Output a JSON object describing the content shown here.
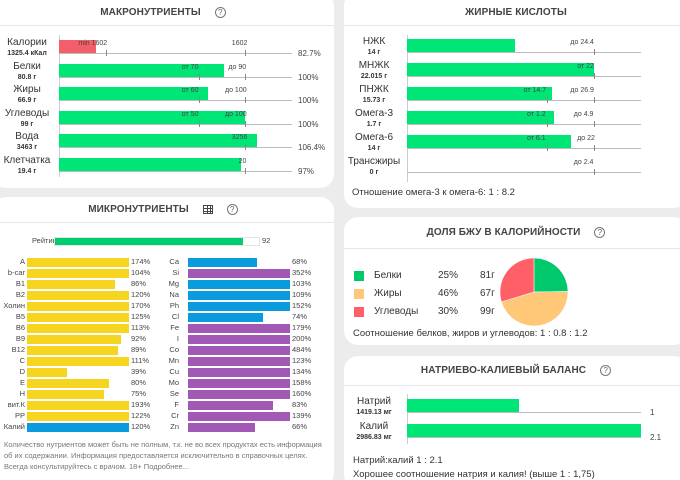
{
  "macro": {
    "title": "МАКРОНУТРИЕНТЫ",
    "help": "?",
    "rows": [
      {
        "name": "Калории",
        "value": "1325.4 кКал",
        "fill_pct": 16,
        "color": "#f25f6a",
        "marks": [
          {
            "text": "min 1602",
            "tick": 20
          },
          {
            "text": "1602",
            "tick": 80
          }
        ],
        "pct": "82.7%"
      },
      {
        "name": "Белки",
        "value": "80.8 г",
        "fill_pct": 71,
        "color": "#00e676",
        "marks": [
          {
            "text": "от 70",
            "tick": 60
          },
          {
            "text": "до 90",
            "tick": 80
          }
        ],
        "pct": "100%"
      },
      {
        "name": "Жиры",
        "value": "66.9 г",
        "fill_pct": 64,
        "color": "#00e676",
        "marks": [
          {
            "text": "от 60",
            "tick": 60
          },
          {
            "text": "до 100",
            "tick": 80
          }
        ],
        "pct": "100%"
      },
      {
        "name": "Углеводы",
        "value": "99 г",
        "fill_pct": 80,
        "color": "#00e676",
        "marks": [
          {
            "text": "от 50",
            "tick": 60
          },
          {
            "text": "до 100",
            "tick": 80
          }
        ],
        "pct": "100%"
      },
      {
        "name": "Вода",
        "value": "3463 г",
        "fill_pct": 85,
        "color": "#00e676",
        "marks": [
          {
            "text": "3256",
            "tick": 80
          }
        ],
        "pct": "106.4%"
      },
      {
        "name": "Клетчатка",
        "value": "19.4 г",
        "fill_pct": 78,
        "color": "#00e676",
        "marks": [
          {
            "text": "20",
            "tick": 80
          }
        ],
        "pct": "97%"
      }
    ]
  },
  "fatty": {
    "title": "ЖИРНЫЕ КИСЛОТЫ",
    "rows": [
      {
        "name": "НЖК",
        "value": "14 г",
        "fill_pct": 46,
        "marks": [
          {
            "text": "до 24.4",
            "tick": 80
          }
        ]
      },
      {
        "name": "МНЖК",
        "value": "22.015 г",
        "fill_pct": 80,
        "marks": [
          {
            "text": "от 22",
            "tick": 80
          }
        ]
      },
      {
        "name": "ПНЖК",
        "value": "15.73 г",
        "fill_pct": 62,
        "marks": [
          {
            "text": "от 14.7",
            "tick": 60
          },
          {
            "text": "до 26.9",
            "tick": 80
          }
        ]
      },
      {
        "name": "Омега-3",
        "value": "1.7 г",
        "fill_pct": 63,
        "marks": [
          {
            "text": "от 1.2",
            "tick": 60
          },
          {
            "text": "до 4.9",
            "tick": 80
          }
        ]
      },
      {
        "name": "Омега-6",
        "value": "14 г",
        "fill_pct": 70,
        "marks": [
          {
            "text": "от 6.1",
            "tick": 60
          },
          {
            "text": "до 22",
            "tick": 80
          }
        ]
      },
      {
        "name": "Трансжиры",
        "value": "0 г",
        "fill_pct": 0,
        "marks": [
          {
            "text": "до 2.4",
            "tick": 80
          }
        ]
      }
    ],
    "ratio": "Отношение омега-3 к омега-6: 1 : 8.2"
  },
  "micro": {
    "title": "МИКРОНУТРИЕНТЫ",
    "rating_label": "Рейтинг",
    "rating_value": "92",
    "rating_pct": 92,
    "colors": {
      "vitamin": "#f5d520",
      "macro": "#0a9ade",
      "micro": "#a259b5",
      "rating": "#00cc70"
    },
    "left": [
      {
        "name": "A",
        "pct": 174,
        "label": "174%",
        "kind": "vitamin"
      },
      {
        "name": "b-car",
        "pct": 104,
        "label": "104%",
        "kind": "vitamin"
      },
      {
        "name": "B1",
        "pct": 86,
        "label": "86%",
        "kind": "vitamin"
      },
      {
        "name": "B2",
        "pct": 120,
        "label": "120%",
        "kind": "vitamin"
      },
      {
        "name": "Холин",
        "pct": 170,
        "label": "170%",
        "kind": "vitamin"
      },
      {
        "name": "B5",
        "pct": 125,
        "label": "125%",
        "kind": "vitamin"
      },
      {
        "name": "B6",
        "pct": 113,
        "label": "113%",
        "kind": "vitamin"
      },
      {
        "name": "B9",
        "pct": 92,
        "label": "92%",
        "kind": "vitamin"
      },
      {
        "name": "B12",
        "pct": 89,
        "label": "89%",
        "kind": "vitamin"
      },
      {
        "name": "C",
        "pct": 111,
        "label": "111%",
        "kind": "vitamin"
      },
      {
        "name": "D",
        "pct": 39,
        "label": "39%",
        "kind": "vitamin"
      },
      {
        "name": "E",
        "pct": 80,
        "label": "80%",
        "kind": "vitamin"
      },
      {
        "name": "H",
        "pct": 75,
        "label": "75%",
        "kind": "vitamin"
      },
      {
        "name": "вит.К",
        "pct": 193,
        "label": "193%",
        "kind": "vitamin"
      },
      {
        "name": "PP",
        "pct": 122,
        "label": "122%",
        "kind": "vitamin"
      },
      {
        "name": "Калий",
        "pct": 120,
        "label": "120%",
        "kind": "macro"
      }
    ],
    "right": [
      {
        "name": "Ca",
        "pct": 68,
        "label": "68%",
        "kind": "macro"
      },
      {
        "name": "Si",
        "pct": 352,
        "label": "352%",
        "kind": "micro"
      },
      {
        "name": "Mg",
        "pct": 103,
        "label": "103%",
        "kind": "macro"
      },
      {
        "name": "Na",
        "pct": 109,
        "label": "109%",
        "kind": "macro"
      },
      {
        "name": "Ph",
        "pct": 152,
        "label": "152%",
        "kind": "macro"
      },
      {
        "name": "Cl",
        "pct": 74,
        "label": "74%",
        "kind": "macro"
      },
      {
        "name": "Fe",
        "pct": 179,
        "label": "179%",
        "kind": "micro"
      },
      {
        "name": "I",
        "pct": 200,
        "label": "200%",
        "kind": "micro"
      },
      {
        "name": "Co",
        "pct": 484,
        "label": "484%",
        "kind": "micro"
      },
      {
        "name": "Mn",
        "pct": 123,
        "label": "123%",
        "kind": "micro"
      },
      {
        "name": "Cu",
        "pct": 134,
        "label": "134%",
        "kind": "micro"
      },
      {
        "name": "Mo",
        "pct": 158,
        "label": "158%",
        "kind": "micro"
      },
      {
        "name": "Se",
        "pct": 160,
        "label": "160%",
        "kind": "micro"
      },
      {
        "name": "F",
        "pct": 83,
        "label": "83%",
        "kind": "micro"
      },
      {
        "name": "Cr",
        "pct": 139,
        "label": "139%",
        "kind": "micro"
      },
      {
        "name": "Zn",
        "pct": 66,
        "label": "66%",
        "kind": "micro"
      }
    ],
    "note": "Количество нутриентов может быть не полным, т.к. не во всех продуктах есть информация об их содержании. Информация предоставляется исключительно в справочных целях. Всегда консультируйтесь с врачом. 18+",
    "more_link": "Подробнее..."
  },
  "bju": {
    "title": "ДОЛЯ БЖУ В КАЛОРИЙНОСТИ",
    "legend": [
      {
        "name": "Белки",
        "pct": "25%",
        "grams": "81г",
        "color": "#00c96b",
        "share": 25
      },
      {
        "name": "Жиры",
        "pct": "46%",
        "grams": "67г",
        "color": "#ffc878",
        "share": 46
      },
      {
        "name": "Углеводы",
        "pct": "30%",
        "grams": "99г",
        "color": "#ff6068",
        "share": 30
      }
    ],
    "ratio": "Соотношение белков, жиров и углеводов: 1 : 0.8 : 1.2"
  },
  "nak": {
    "title": "НАТРИЕВО-КАЛИЕВЫЙ БАЛАНС",
    "rows": [
      {
        "name": "Натрий",
        "value": "1419.13 мг",
        "fill_pct": 48,
        "end": "1"
      },
      {
        "name": "Калий",
        "value": "2986.83 мг",
        "fill_pct": 100,
        "end": "2.1"
      }
    ],
    "ratio": "Натрий:калий 1 : 2.1",
    "verdict": "Хорошее соотношение натрия и калия! (выше 1 : 1,75)"
  }
}
